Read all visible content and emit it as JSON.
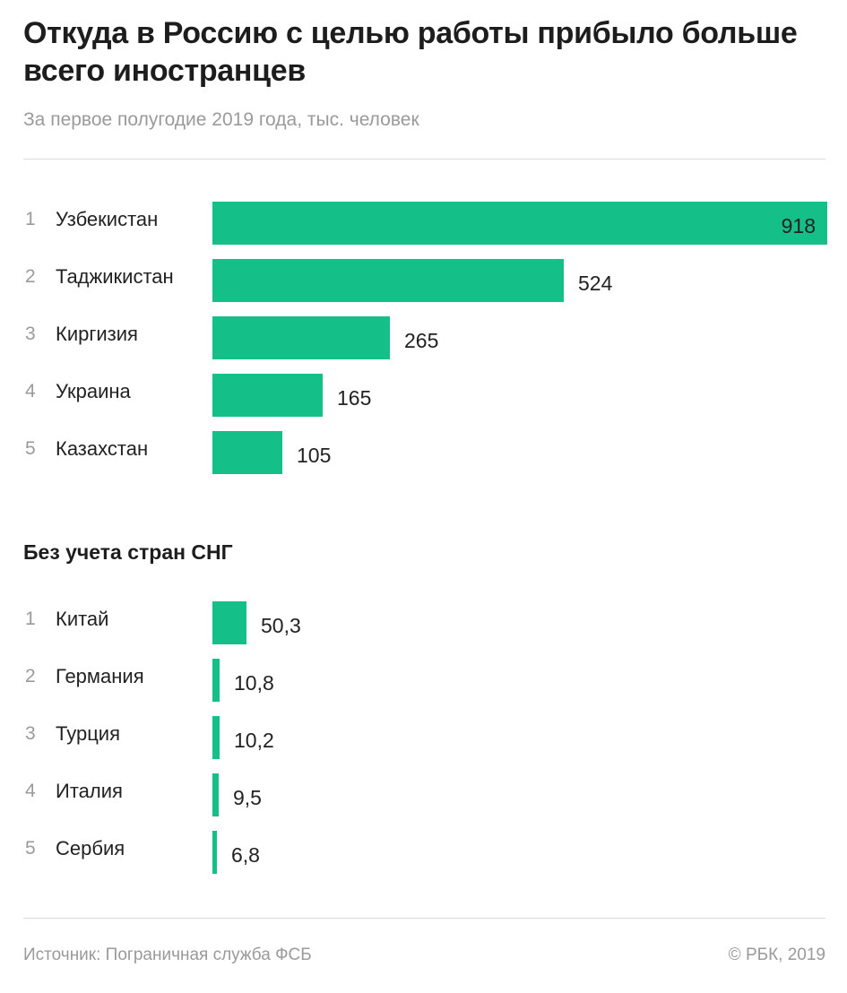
{
  "title": "Откуда в Россию с целью работы прибыло больше всего иностранцев",
  "subtitle": "За первое полугодие 2019 года, тыс. человек",
  "section_title": "Без учета стран СНГ",
  "footer": {
    "source": "Источник: Пограничная служба ФСБ",
    "copyright": "© РБК, 2019"
  },
  "colors": {
    "bar": "#15bf88",
    "muted_text": "#9a9a9a"
  },
  "chart_data": [
    {
      "type": "bar",
      "orientation": "horizontal",
      "title": "",
      "xlim": [
        0,
        918
      ],
      "ranks": [
        "1",
        "2",
        "3",
        "4",
        "5"
      ],
      "categories": [
        "Узбекистан",
        "Таджикистан",
        "Киргизия",
        "Украина",
        "Казахстан"
      ],
      "values": [
        918,
        524,
        265,
        165,
        105
      ],
      "value_labels": [
        "918",
        "524",
        "265",
        "165",
        "105"
      ]
    },
    {
      "type": "bar",
      "orientation": "horizontal",
      "title": "Без учета стран СНГ",
      "xlim": [
        0,
        918
      ],
      "ranks": [
        "1",
        "2",
        "3",
        "4",
        "5"
      ],
      "categories": [
        "Китай",
        "Германия",
        "Турция",
        "Италия",
        "Сербия"
      ],
      "values": [
        50.3,
        10.8,
        10.2,
        9.5,
        6.8
      ],
      "value_labels": [
        "50,3",
        "10,8",
        "10,2",
        "9,5",
        "6,8"
      ]
    }
  ]
}
